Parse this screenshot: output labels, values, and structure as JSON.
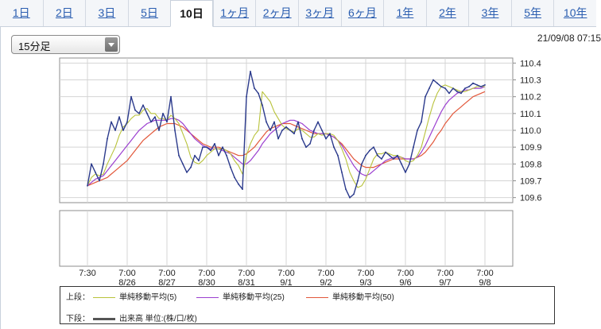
{
  "tabs": [
    "1日",
    "2日",
    "3日",
    "5日",
    "10日",
    "1ヶ月",
    "2ヶ月",
    "3ヶ月",
    "6ヶ月",
    "1年",
    "2年",
    "3年",
    "5年",
    "10年"
  ],
  "active_tab": "10日",
  "interval_select": {
    "value": "15分足"
  },
  "timestamp": "21/09/08 07:15",
  "colors": {
    "price": "#2b3a8c",
    "ma5": "#b8c23a",
    "ma25": "#9b3fd0",
    "ma50": "#e2573a",
    "volume": "#555555"
  },
  "chart_data": {
    "type": "line",
    "x_ticks": [
      "7:30",
      "7:00\n8/26",
      "7:00\n8/27",
      "7:00\n8/30",
      "7:00\n8/31",
      "7:00\n9/1",
      "7:00\n9/2",
      "7:00\n9/3",
      "7:00\n9/6",
      "7:00\n9/7",
      "7:00\n9/8"
    ],
    "y_ticks": [
      "109.6",
      "109.7",
      "109.8",
      "109.9",
      "110.0",
      "110.1",
      "110.2",
      "110.3",
      "110.4"
    ],
    "ylim": [
      109.57,
      110.43
    ],
    "price_x": [
      0,
      0.1,
      0.2,
      0.3,
      0.4,
      0.5,
      0.6,
      0.7,
      0.8,
      0.9,
      1.0,
      1.1,
      1.2,
      1.3,
      1.4,
      1.5,
      1.6,
      1.7,
      1.8,
      1.9,
      2.0,
      2.1,
      2.2,
      2.3,
      2.4,
      2.5,
      2.6,
      2.7,
      2.8,
      2.9,
      3.0,
      3.1,
      3.2,
      3.3,
      3.4,
      3.5,
      3.6,
      3.7,
      3.8,
      3.9,
      4.0,
      4.1,
      4.2,
      4.3,
      4.4,
      4.5,
      4.6,
      4.7,
      4.8,
      4.9,
      5.0,
      5.1,
      5.2,
      5.3,
      5.4,
      5.5,
      5.6,
      5.7,
      5.8,
      5.9,
      6.0,
      6.1,
      6.2,
      6.3,
      6.4,
      6.5,
      6.6,
      6.7,
      6.8,
      6.9,
      7.0,
      7.1,
      7.2,
      7.3,
      7.4,
      7.5,
      7.6,
      7.7,
      7.8,
      7.9,
      8.0,
      8.1,
      8.2,
      8.3,
      8.4,
      8.5,
      8.6,
      8.7,
      8.8,
      8.9,
      9.0,
      9.1,
      9.2,
      9.3,
      9.4,
      9.5,
      9.6,
      9.7,
      9.8,
      9.9,
      10.0
    ],
    "price": [
      109.67,
      109.8,
      109.75,
      109.7,
      109.8,
      109.95,
      110.05,
      110.0,
      110.08,
      110.0,
      110.05,
      110.2,
      110.12,
      110.1,
      110.15,
      110.1,
      110.05,
      110.08,
      110.0,
      110.1,
      110.05,
      110.2,
      110.0,
      109.85,
      109.8,
      109.75,
      109.78,
      109.85,
      109.82,
      109.9,
      109.9,
      109.88,
      109.92,
      109.85,
      109.9,
      109.85,
      109.78,
      109.72,
      109.68,
      109.65,
      110.2,
      110.35,
      110.25,
      110.22,
      110.15,
      110.05,
      110.0,
      110.05,
      109.95,
      110.0,
      110.02,
      110.0,
      109.98,
      110.05,
      109.95,
      109.9,
      109.92,
      110.0,
      110.05,
      110.0,
      109.95,
      109.98,
      109.9,
      109.85,
      109.75,
      109.65,
      109.6,
      109.62,
      109.7,
      109.8,
      109.85,
      109.88,
      109.9,
      109.85,
      109.83,
      109.87,
      109.85,
      109.83,
      109.85,
      109.8,
      109.75,
      109.8,
      109.9,
      110.0,
      110.05,
      110.2,
      110.25,
      110.3,
      110.28,
      110.26,
      110.25,
      110.22,
      110.25,
      110.23,
      110.22,
      110.25,
      110.26,
      110.28,
      110.27,
      110.26,
      110.27
    ],
    "sma5": [
      109.67,
      109.72,
      109.74,
      109.73,
      109.74,
      109.8,
      109.85,
      109.9,
      109.97,
      110.02,
      110.04,
      110.07,
      110.09,
      110.09,
      110.12,
      110.13,
      110.1,
      110.1,
      110.07,
      110.07,
      110.06,
      110.09,
      110.07,
      110.04,
      109.98,
      109.92,
      109.84,
      109.81,
      109.8,
      109.82,
      109.85,
      109.87,
      109.89,
      109.89,
      109.89,
      109.88,
      109.86,
      109.82,
      109.79,
      109.74,
      109.85,
      109.92,
      109.97,
      110.0,
      110.23,
      110.2,
      110.17,
      110.11,
      110.07,
      110.03,
      110.01,
      110.0,
      109.99,
      110.01,
      110.0,
      109.98,
      109.96,
      109.96,
      109.98,
      109.97,
      109.98,
      109.98,
      109.97,
      109.94,
      109.89,
      109.83,
      109.75,
      109.7,
      109.66,
      109.67,
      109.71,
      109.77,
      109.83,
      109.86,
      109.86,
      109.87,
      109.86,
      109.85,
      109.85,
      109.84,
      109.82,
      109.81,
      109.82,
      109.85,
      109.9,
      109.99,
      110.08,
      110.16,
      110.22,
      110.26,
      110.27,
      110.26,
      110.25,
      110.24,
      110.23,
      110.23,
      110.24,
      110.25,
      110.26,
      110.26,
      110.26
    ],
    "sma25": [
      109.67,
      109.69,
      109.71,
      109.72,
      109.73,
      109.76,
      109.79,
      109.82,
      109.85,
      109.88,
      109.91,
      109.94,
      109.97,
      110.0,
      110.02,
      110.04,
      110.05,
      110.06,
      110.06,
      110.06,
      110.06,
      110.07,
      110.07,
      110.06,
      110.04,
      110.01,
      109.98,
      109.95,
      109.93,
      109.91,
      109.9,
      109.89,
      109.89,
      109.89,
      109.88,
      109.87,
      109.86,
      109.84,
      109.82,
      109.8,
      109.8,
      109.82,
      109.85,
      109.88,
      109.92,
      109.95,
      109.98,
      110.0,
      110.02,
      110.04,
      110.05,
      110.06,
      110.06,
      110.05,
      110.04,
      110.02,
      110.0,
      109.99,
      109.98,
      109.98,
      109.98,
      109.97,
      109.96,
      109.94,
      109.91,
      109.87,
      109.83,
      109.79,
      109.76,
      109.74,
      109.73,
      109.74,
      109.76,
      109.78,
      109.8,
      109.82,
      109.83,
      109.84,
      109.84,
      109.84,
      109.83,
      109.83,
      109.83,
      109.84,
      109.87,
      109.91,
      109.96,
      110.01,
      110.06,
      110.11,
      110.15,
      110.18,
      110.2,
      110.22,
      110.23,
      110.24,
      110.24,
      110.25,
      110.25,
      110.25,
      110.26
    ],
    "sma50": [
      109.67,
      109.68,
      109.69,
      109.7,
      109.71,
      109.72,
      109.74,
      109.76,
      109.78,
      109.8,
      109.82,
      109.85,
      109.88,
      109.91,
      109.94,
      109.96,
      109.98,
      110.0,
      110.02,
      110.03,
      110.04,
      110.04,
      110.04,
      110.03,
      110.02,
      110.0,
      109.98,
      109.96,
      109.94,
      109.92,
      109.91,
      109.9,
      109.9,
      109.9,
      109.89,
      109.88,
      109.87,
      109.86,
      109.85,
      109.85,
      109.86,
      109.88,
      109.9,
      109.93,
      109.96,
      109.99,
      110.01,
      110.02,
      110.03,
      110.04,
      110.04,
      110.04,
      110.03,
      110.02,
      110.01,
      110.0,
      109.99,
      109.98,
      109.98,
      109.98,
      109.98,
      109.97,
      109.96,
      109.94,
      109.92,
      109.89,
      109.86,
      109.83,
      109.81,
      109.79,
      109.78,
      109.78,
      109.78,
      109.79,
      109.8,
      109.81,
      109.82,
      109.83,
      109.83,
      109.83,
      109.83,
      109.83,
      109.83,
      109.84,
      109.85,
      109.87,
      109.9,
      109.93,
      109.97,
      110.0,
      110.04,
      110.07,
      110.1,
      110.12,
      110.14,
      110.16,
      110.18,
      110.2,
      110.21,
      110.22,
      110.23
    ]
  },
  "legend": {
    "upper_label": "上段：",
    "ma5_label": "単純移動平均(5)",
    "ma25_label": "単純移動平均(25)",
    "ma50_label": "単純移動平均(50)",
    "lower_label": "下段：",
    "volume_label": "出来高 単位:(株/口/枚)"
  }
}
